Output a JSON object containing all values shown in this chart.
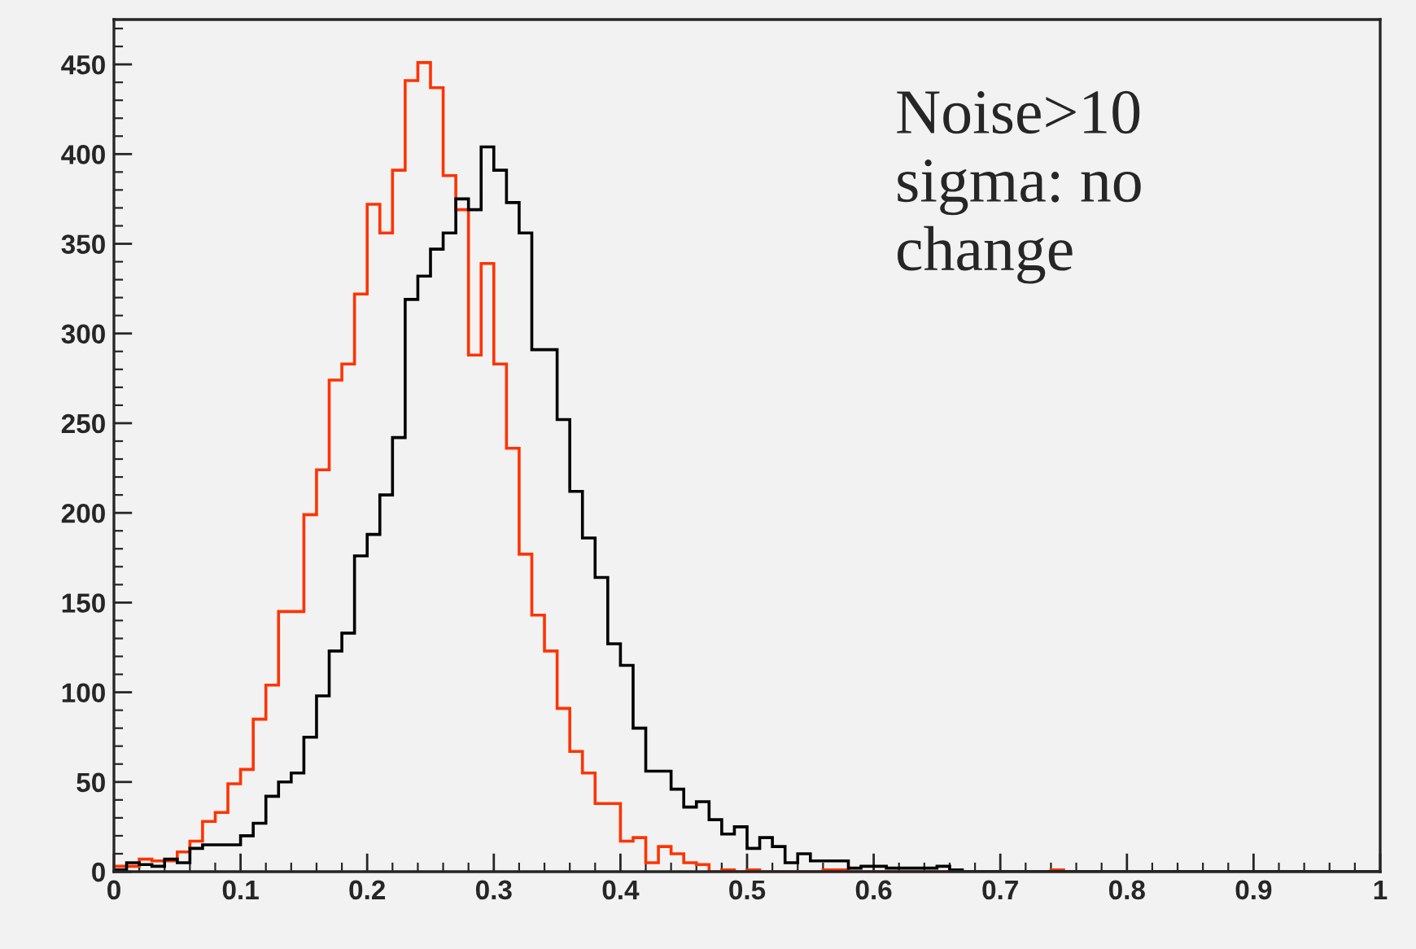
{
  "chart_data": {
    "type": "histogram",
    "bins": [
      0,
      0.01,
      0.02,
      0.03,
      0.04,
      0.05,
      0.06,
      0.07,
      0.08,
      0.09,
      0.1,
      0.11,
      0.12,
      0.13,
      0.14,
      0.15,
      0.16,
      0.17,
      0.18,
      0.19,
      0.2,
      0.21,
      0.22,
      0.23,
      0.24,
      0.25,
      0.26,
      0.27,
      0.28,
      0.29,
      0.3,
      0.31,
      0.32,
      0.33,
      0.34,
      0.35,
      0.36,
      0.37,
      0.38,
      0.39,
      0.4,
      0.41,
      0.42,
      0.43,
      0.44,
      0.45,
      0.46,
      0.47,
      0.48,
      0.49,
      0.5,
      0.51,
      0.52,
      0.53,
      0.54,
      0.55,
      0.56,
      0.57,
      0.58,
      0.59,
      0.6,
      0.61,
      0.62,
      0.63,
      0.64,
      0.65,
      0.66,
      0.67,
      0.68,
      0.69,
      0.7,
      0.71,
      0.72,
      0.73,
      0.74,
      0.75,
      0.76,
      0.77,
      0.78,
      0.79,
      0.8,
      0.81,
      0.82,
      0.83,
      0.84,
      0.85,
      0.86,
      0.87,
      0.88,
      0.89,
      0.9,
      0.91,
      0.92,
      0.93,
      0.94,
      0.95,
      0.96,
      0.97,
      0.98,
      0.99,
      1
    ],
    "series": [
      {
        "color": "#ff3300",
        "values": [
          3,
          3,
          7,
          6,
          6,
          11,
          17,
          28,
          33,
          49,
          57,
          85,
          104,
          145,
          145,
          199,
          224,
          274,
          283,
          322,
          372,
          356,
          391,
          441,
          451,
          437,
          388,
          369,
          288,
          339,
          283,
          236,
          177,
          143,
          123,
          91,
          67,
          55,
          38,
          38,
          17,
          19,
          5,
          14,
          10,
          5,
          4,
          0,
          1,
          0,
          1,
          0,
          0,
          0,
          0,
          0,
          1,
          1,
          0,
          0,
          0,
          0,
          0,
          0,
          0,
          0,
          0,
          0,
          0,
          0,
          0,
          0,
          0,
          0,
          1,
          0,
          0,
          0,
          0,
          0,
          0,
          0,
          0,
          0,
          0,
          0,
          0,
          0,
          0,
          0,
          0,
          0,
          0,
          0,
          0,
          0,
          0,
          0,
          0,
          0
        ]
      },
      {
        "color": "#000000",
        "values": [
          1,
          5,
          4,
          3,
          7,
          5,
          13,
          15,
          15,
          15,
          20,
          27,
          42,
          50,
          55,
          75,
          98,
          123,
          133,
          176,
          188,
          210,
          242,
          319,
          332,
          347,
          356,
          375,
          369,
          404,
          391,
          373,
          356,
          291,
          291,
          252,
          212,
          186,
          164,
          127,
          115,
          80,
          56,
          56,
          46,
          36,
          39,
          29,
          21,
          25,
          13,
          19,
          14,
          5,
          10,
          6,
          6,
          6,
          2,
          3,
          3,
          2,
          2,
          2,
          2,
          3,
          1,
          0,
          0,
          0,
          0,
          0,
          0,
          0,
          0,
          0,
          0,
          0,
          0,
          0,
          0,
          0,
          0,
          0,
          0,
          0,
          0,
          0,
          0,
          0,
          0,
          0,
          0,
          0,
          0,
          0,
          0,
          0,
          0,
          0
        ]
      }
    ],
    "xlim": [
      0,
      1
    ],
    "xticks": [
      0,
      0.1,
      0.2,
      0.3,
      0.4,
      0.5,
      0.6,
      0.7,
      0.8,
      0.9,
      1
    ],
    "ylim": [
      0,
      475
    ],
    "yticks": [
      0,
      50,
      100,
      150,
      200,
      250,
      300,
      350,
      400,
      450
    ],
    "grid": false,
    "annotations": [
      "Noise>10\nsigma: no\nchange"
    ]
  }
}
